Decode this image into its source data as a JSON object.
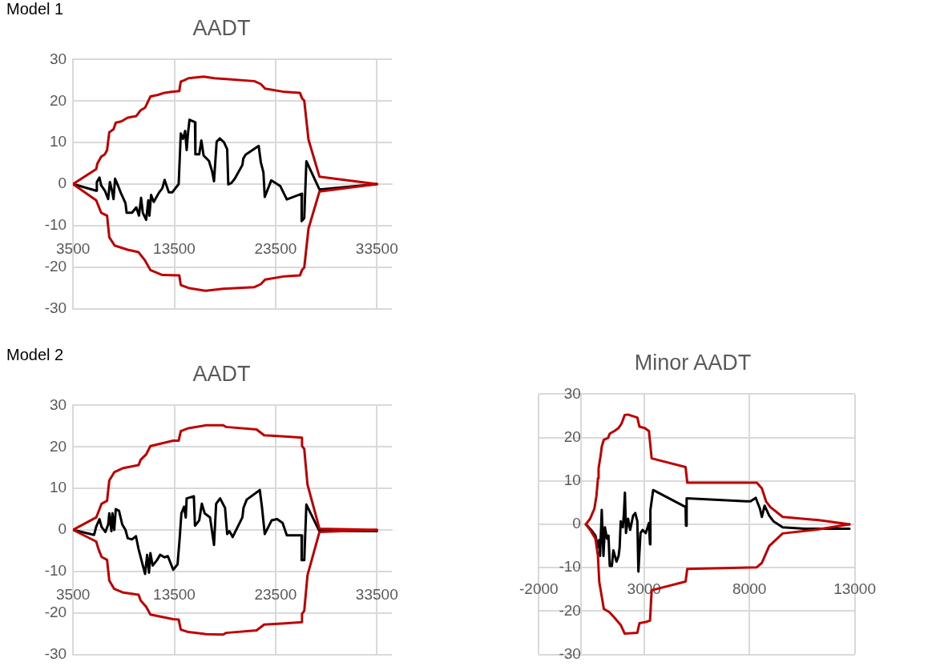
{
  "chart_data": [
    {
      "type": "line",
      "title": "AADT",
      "annotations": [
        "Model 1"
      ],
      "xlim": [
        3500,
        35000
      ],
      "xticks": [
        3500,
        13500,
        23500,
        33500
      ],
      "ylim": [
        -30,
        30
      ],
      "yticks": [
        -30,
        -20,
        -10,
        0,
        10,
        20,
        30
      ],
      "grid": true,
      "legend": false,
      "series": [
        {
          "color": "#c00000",
          "x": [
            3500,
            5790,
            5900,
            6280,
            6650,
            6860,
            7080,
            7500,
            7720,
            8250,
            8900,
            9750,
            10180,
            10610,
            11140,
            11890,
            12540,
            13180,
            13990,
            14140,
            14460,
            14890,
            16390,
            17460,
            18620,
            21400,
            22040,
            22470,
            24400,
            25900,
            26110,
            26330,
            26750,
            27830,
            33500
          ],
          "values": [
            0,
            3.6,
            4.9,
            6.6,
            7.2,
            8.2,
            12.5,
            13.2,
            14.8,
            15.1,
            16,
            16.4,
            17.8,
            18.4,
            21.1,
            21.5,
            22,
            22.2,
            22.4,
            24.7,
            25,
            25.5,
            25.9,
            25.5,
            25.3,
            24.8,
            24.1,
            23,
            22.2,
            22,
            20.7,
            20.1,
            10.7,
            1.8,
            0
          ]
        },
        {
          "color": "#c00000",
          "x": [
            3500,
            5790,
            6280,
            6860,
            7080,
            7610,
            8900,
            9970,
            10610,
            11140,
            12320,
            13990,
            14140,
            14890,
            16600,
            18320,
            21400,
            22040,
            22470,
            24400,
            25900,
            26110,
            26330,
            26750,
            27830,
            33500
          ],
          "values": [
            0,
            -3.9,
            -6.9,
            -7.6,
            -12.8,
            -14.8,
            -15.8,
            -16.4,
            -18.4,
            -20.7,
            -21.9,
            -22,
            -24.3,
            -25,
            -25.7,
            -25.2,
            -24.8,
            -24.1,
            -23,
            -22.2,
            -22,
            -20.7,
            -20.1,
            -10.7,
            -1.8,
            0
          ]
        },
        {
          "color": "#000000",
          "x": [
            3500,
            5790,
            5850,
            6110,
            6280,
            6650,
            6970,
            7140,
            7350,
            7500,
            7650,
            7930,
            8250,
            8680,
            8790,
            9320,
            9750,
            10010,
            10220,
            10390,
            10720,
            10930,
            11040,
            11210,
            11470,
            12000,
            12320,
            12540,
            12960,
            13290,
            13930,
            14140,
            14360,
            14570,
            14720,
            14850,
            15000,
            15540,
            15580,
            15960,
            16170,
            16390,
            16920,
            17240,
            17420,
            17680,
            17980,
            18400,
            18720,
            18830,
            19150,
            19470,
            20220,
            20320,
            20540,
            21830,
            22040,
            22300,
            22430,
            23070,
            23970,
            24610,
            26110,
            26070,
            26330,
            26540,
            27830,
            33500
          ],
          "values": [
            0,
            -1.6,
            0.5,
            1.6,
            -0.3,
            -1.6,
            -3.6,
            0.5,
            -1.6,
            -3.6,
            1.3,
            -0.3,
            -2.3,
            -4.6,
            -6.9,
            -6.9,
            -5.6,
            -7.6,
            -3.3,
            -6.9,
            -8.6,
            -3.9,
            -7.6,
            -2.6,
            -4.3,
            -2,
            -1,
            1,
            -2,
            -2,
            0,
            12.2,
            10.9,
            12.8,
            8.2,
            12.2,
            15.5,
            14.9,
            7.2,
            7.2,
            10.5,
            6.9,
            5.6,
            3,
            0.7,
            10.2,
            11,
            10.1,
            8.4,
            -0.1,
            0.3,
            1.3,
            4.6,
            6.2,
            7.1,
            9.2,
            5.3,
            2.8,
            -3.1,
            0.9,
            -0.5,
            -3.7,
            -2.3,
            -8.9,
            -8.2,
            5.5,
            -1.3,
            0
          ]
        }
      ]
    },
    {
      "type": "line",
      "title": "AADT",
      "annotations": [
        "Model 2"
      ],
      "xlim": [
        3500,
        35000
      ],
      "xticks": [
        3500,
        13500,
        23500,
        33500
      ],
      "ylim": [
        -30,
        30
      ],
      "yticks": [
        -30,
        -20,
        -10,
        0,
        10,
        20,
        30
      ],
      "grid": true,
      "legend": false,
      "series": [
        {
          "color": "#c00000",
          "x": [
            3500,
            5790,
            6000,
            6320,
            6860,
            7080,
            7570,
            8470,
            9970,
            10180,
            10720,
            11140,
            13390,
            13930,
            14140,
            14890,
            16600,
            18320,
            18620,
            21620,
            22370,
            24400,
            26110,
            26110,
            26330,
            26650,
            27830,
            33500
          ],
          "values": [
            0,
            3,
            4.3,
            6.3,
            7,
            11.9,
            13.9,
            14.9,
            15.6,
            16.9,
            18.2,
            20.2,
            21.5,
            21.5,
            23.8,
            24.5,
            25.2,
            25.2,
            24.8,
            24.2,
            22.8,
            22.5,
            22.2,
            20.2,
            19.5,
            10.9,
            0.3,
            0
          ]
        },
        {
          "color": "#c00000",
          "x": [
            3500,
            5790,
            6000,
            6320,
            6860,
            7080,
            7570,
            8470,
            9970,
            10180,
            10720,
            11140,
            13390,
            13930,
            14140,
            14890,
            16600,
            18320,
            18620,
            21620,
            22370,
            24400,
            26110,
            26110,
            26330,
            26650,
            27830,
            33500
          ],
          "values": [
            0,
            -2.8,
            -4.5,
            -6.5,
            -7.2,
            -12.2,
            -14.2,
            -15.1,
            -15.6,
            -17,
            -18.5,
            -20.4,
            -21.5,
            -21.6,
            -24,
            -24.6,
            -25.1,
            -25.2,
            -24.8,
            -24.2,
            -22.8,
            -22.5,
            -22.2,
            -20.2,
            -19.5,
            -10.9,
            -0.5,
            0
          ]
        },
        {
          "color": "#000000",
          "x": [
            3500,
            5580,
            5790,
            6110,
            6320,
            6700,
            6970,
            7080,
            7290,
            7390,
            7570,
            7720,
            8040,
            8360,
            8680,
            8900,
            9320,
            9710,
            9970,
            10180,
            10610,
            10820,
            11000,
            11140,
            11360,
            11780,
            12100,
            12540,
            12860,
            13390,
            13820,
            14030,
            14200,
            14460,
            14630,
            14720,
            15430,
            15540,
            15960,
            16220,
            16500,
            17030,
            17420,
            17630,
            18020,
            18510,
            18720,
            18940,
            19260,
            20220,
            20330,
            20650,
            21940,
            22150,
            22430,
            23110,
            23650,
            24190,
            24610,
            26110,
            26070,
            26330,
            26540,
            27830,
            33500
          ],
          "values": [
            0,
            -1.2,
            0.8,
            2.6,
            0.7,
            -0.5,
            1.3,
            4,
            -0.3,
            4,
            0,
            5,
            4.6,
            1.3,
            0,
            -2,
            -2.3,
            -1.5,
            -4.6,
            -6.6,
            -10.6,
            -6,
            -10.3,
            -5.6,
            -8.6,
            -7.3,
            -6,
            -6.6,
            -6.3,
            -9.6,
            -8.3,
            -2,
            4,
            5.6,
            3,
            7.6,
            8.1,
            1,
            2.3,
            6.3,
            4,
            3,
            -3.6,
            6.3,
            7.6,
            5.3,
            -1,
            -0.3,
            -1.7,
            3,
            5.3,
            7.3,
            9.6,
            5.6,
            -1,
            2.3,
            2.6,
            1.7,
            -1.3,
            -1.3,
            -7.3,
            -7.3,
            6.1,
            -0.3,
            -0.3
          ]
        }
      ]
    },
    {
      "type": "line",
      "title": "Minor AADT",
      "xlim": [
        -2000,
        13000
      ],
      "xticks": [
        -2000,
        3000,
        8000,
        13000
      ],
      "ylim": [
        -30,
        30
      ],
      "yticks": [
        -30,
        -20,
        -10,
        0,
        10,
        20,
        30
      ],
      "grid": true,
      "legend": false,
      "series": [
        {
          "color": "#c00000",
          "x": [
            241,
            440,
            640,
            740,
            810,
            840,
            940,
            990,
            1090,
            1290,
            1370,
            1590,
            1790,
            1930,
            2080,
            2230,
            2680,
            2780,
            3030,
            3230,
            3360,
            4970,
            5050,
            8350,
            8590,
            8790,
            8990,
            9580,
            11220,
            12750
          ],
          "values": [
            0,
            1.3,
            3.6,
            6.6,
            10.6,
            12.9,
            15.9,
            17.9,
            19.5,
            19.9,
            20.9,
            21.5,
            22.2,
            23.2,
            25.2,
            25.3,
            24.6,
            22.5,
            22.2,
            21.5,
            15.2,
            13.2,
            9.6,
            9.6,
            8.3,
            5.3,
            4,
            1.7,
            1,
            0
          ]
        },
        {
          "color": "#c00000",
          "x": [
            241,
            440,
            690,
            810,
            870,
            1090,
            1340,
            1590,
            1890,
            2080,
            2680,
            2780,
            3080,
            3280,
            3360,
            4970,
            5050,
            8350,
            8590,
            8940,
            9580,
            11220,
            12750
          ],
          "values": [
            0,
            -1.3,
            -3.3,
            -7.3,
            -13.2,
            -19.5,
            -20.2,
            -21.5,
            -23.2,
            -25.2,
            -25,
            -22.8,
            -22.5,
            -22.2,
            -15.2,
            -13.2,
            -10.3,
            -9.9,
            -8.9,
            -5,
            -2.1,
            -1.2,
            0
          ]
        },
        {
          "color": "#000000",
          "x": [
            241,
            490,
            690,
            810,
            870,
            910,
            990,
            1070,
            1140,
            1240,
            1310,
            1370,
            1470,
            1540,
            1690,
            1790,
            1840,
            1890,
            1990,
            2040,
            2090,
            2140,
            2240,
            2340,
            2480,
            2580,
            2680,
            2730,
            2830,
            2930,
            3080,
            3230,
            3280,
            3300,
            3430,
            4970,
            4990,
            5020,
            7850,
            8050,
            8300,
            8500,
            8590,
            8720,
            8940,
            9140,
            9580,
            10620,
            12750
          ],
          "values": [
            0,
            -1.3,
            -2.6,
            -5.3,
            -3.6,
            -7.3,
            3.3,
            -7.3,
            -0.7,
            -3.3,
            -2.6,
            -9.6,
            -9.6,
            -6,
            -8.6,
            -7.3,
            -5.3,
            0.7,
            -0.7,
            2.3,
            7.3,
            -2,
            1.3,
            -1.3,
            2,
            2.6,
            0.7,
            -10.9,
            -2,
            -1.3,
            -2,
            0.3,
            -4.6,
            3.3,
            7.9,
            4,
            -0.3,
            6,
            5.3,
            5.3,
            6.1,
            3.6,
            1.7,
            4.3,
            2,
            0.7,
            -0.7,
            -1,
            -1
          ]
        }
      ]
    }
  ]
}
